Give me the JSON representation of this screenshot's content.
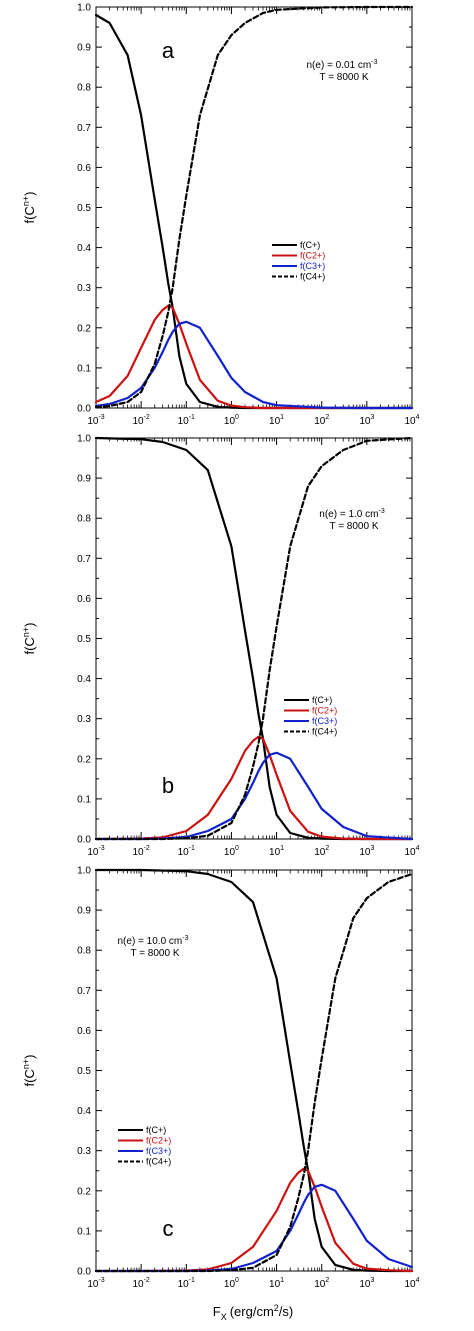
{
  "figure": {
    "x_axis_label": "F",
    "x_axis_label_sub": "X",
    "x_axis_label_units": "(erg/cm",
    "x_axis_label_units_sup": "2",
    "x_axis_label_units_end": "/s)",
    "y_axis_label_base": "f(C",
    "y_axis_label_sup": "n+",
    "y_axis_label_end": ")"
  },
  "chart_data": [
    {
      "type": "line",
      "panel": "a",
      "annotation_line1_base": "n(e) = 0.01 cm",
      "annotation_line1_sup": "-3",
      "annotation_line2": "T = 8000 K",
      "legend_position": "center-right",
      "xscale": "log",
      "xlim": [
        0.001,
        10000
      ],
      "ylim": [
        0,
        1.0
      ],
      "yticks": [
        "0.0",
        "0.1",
        "0.2",
        "0.3",
        "0.4",
        "0.5",
        "0.6",
        "0.7",
        "0.8",
        "0.9",
        "1.0"
      ],
      "xtick_exponents": [
        "-3",
        "-2",
        "-1",
        "0",
        "1",
        "2",
        "3",
        "4"
      ],
      "grid": false,
      "x": [
        0.001,
        0.002,
        0.005,
        0.01,
        0.02,
        0.03,
        0.04,
        0.05,
        0.07,
        0.1,
        0.2,
        0.5,
        1,
        2,
        5,
        10,
        100,
        1000,
        10000
      ],
      "series": [
        {
          "name": "f(C+)",
          "color": "#000000",
          "dash": "solid",
          "values": [
            0.98,
            0.96,
            0.88,
            0.73,
            0.52,
            0.4,
            0.31,
            0.25,
            0.13,
            0.06,
            0.015,
            0.003,
            0.001,
            0,
            0,
            0,
            0,
            0,
            0
          ]
        },
        {
          "name": "f(C2+)",
          "color": "#cc1111",
          "dash": "solid",
          "values": [
            0.015,
            0.03,
            0.08,
            0.15,
            0.22,
            0.245,
            0.255,
            0.25,
            0.21,
            0.16,
            0.07,
            0.018,
            0.006,
            0.002,
            0,
            0,
            0,
            0,
            0
          ]
        },
        {
          "name": "f(C3+)",
          "color": "#1122cc",
          "dash": "solid",
          "values": [
            0.005,
            0.01,
            0.025,
            0.05,
            0.1,
            0.14,
            0.17,
            0.19,
            0.21,
            0.215,
            0.2,
            0.13,
            0.075,
            0.04,
            0.015,
            0.007,
            0.001,
            0,
            0
          ]
        },
        {
          "name": "f(C4+)",
          "color": "#000000",
          "dash": "dashed",
          "values": [
            0.002,
            0.005,
            0.015,
            0.04,
            0.11,
            0.18,
            0.24,
            0.3,
            0.42,
            0.53,
            0.73,
            0.88,
            0.93,
            0.96,
            0.985,
            0.993,
            0.999,
            1.0,
            1.0
          ]
        }
      ]
    },
    {
      "type": "line",
      "panel": "b",
      "annotation_line1_base": "n(e) = 1.0 cm",
      "annotation_line1_sup": "-3",
      "annotation_line2": "T = 8000 K",
      "legend_position": "center-right",
      "xscale": "log",
      "xlim": [
        0.001,
        10000
      ],
      "ylim": [
        0,
        1.0
      ],
      "yticks": [
        "0.0",
        "0.1",
        "0.2",
        "0.3",
        "0.4",
        "0.5",
        "0.6",
        "0.7",
        "0.8",
        "0.9",
        "1.0"
      ],
      "xtick_exponents": [
        "-3",
        "-2",
        "-1",
        "0",
        "1",
        "2",
        "3",
        "4"
      ],
      "grid": false,
      "x": [
        0.001,
        0.01,
        0.03,
        0.1,
        0.3,
        1,
        2,
        3,
        4,
        5,
        7,
        10,
        20,
        50,
        100,
        300,
        1000,
        10000
      ],
      "series": [
        {
          "name": "f(C+)",
          "color": "#000000",
          "dash": "solid",
          "values": [
            1.0,
            0.997,
            0.99,
            0.97,
            0.92,
            0.73,
            0.52,
            0.4,
            0.31,
            0.25,
            0.13,
            0.06,
            0.015,
            0.003,
            0.001,
            0,
            0,
            0
          ]
        },
        {
          "name": "f(C2+)",
          "color": "#cc1111",
          "dash": "solid",
          "values": [
            0,
            0.001,
            0.004,
            0.02,
            0.06,
            0.15,
            0.22,
            0.245,
            0.255,
            0.25,
            0.21,
            0.16,
            0.07,
            0.018,
            0.006,
            0.001,
            0,
            0
          ]
        },
        {
          "name": "f(C3+)",
          "color": "#1122cc",
          "dash": "solid",
          "values": [
            0,
            0,
            0.001,
            0.005,
            0.02,
            0.05,
            0.1,
            0.14,
            0.17,
            0.19,
            0.21,
            0.215,
            0.2,
            0.13,
            0.075,
            0.03,
            0.007,
            0
          ]
        },
        {
          "name": "f(C4+)",
          "color": "#000000",
          "dash": "dashed",
          "values": [
            0,
            0,
            0,
            0.002,
            0.008,
            0.04,
            0.11,
            0.18,
            0.24,
            0.3,
            0.42,
            0.53,
            0.73,
            0.88,
            0.93,
            0.97,
            0.993,
            1.0
          ]
        }
      ]
    },
    {
      "type": "line",
      "panel": "c",
      "annotation_line1_base": "n(e) = 10.0 cm",
      "annotation_line1_sup": "-3",
      "annotation_line2": "T = 8000 K",
      "legend_position": "center-left",
      "xscale": "log",
      "xlim": [
        0.001,
        10000
      ],
      "ylim": [
        0,
        1.0
      ],
      "yticks": [
        "0.0",
        "0.1",
        "0.2",
        "0.3",
        "0.4",
        "0.5",
        "0.6",
        "0.7",
        "0.8",
        "0.9",
        "1.0"
      ],
      "xtick_exponents": [
        "-3",
        "-2",
        "-1",
        "0",
        "1",
        "2",
        "3",
        "4"
      ],
      "grid": false,
      "x": [
        0.001,
        0.01,
        0.1,
        0.3,
        1,
        3,
        10,
        20,
        30,
        40,
        50,
        70,
        100,
        200,
        500,
        1000,
        3000,
        10000
      ],
      "series": [
        {
          "name": "f(C+)",
          "color": "#000000",
          "dash": "solid",
          "values": [
            1.0,
            1.0,
            0.997,
            0.99,
            0.97,
            0.92,
            0.73,
            0.52,
            0.4,
            0.31,
            0.25,
            0.13,
            0.06,
            0.015,
            0.003,
            0.001,
            0,
            0
          ]
        },
        {
          "name": "f(C2+)",
          "color": "#cc1111",
          "dash": "solid",
          "values": [
            0,
            0,
            0.001,
            0.004,
            0.02,
            0.06,
            0.15,
            0.22,
            0.245,
            0.255,
            0.25,
            0.21,
            0.16,
            0.07,
            0.018,
            0.006,
            0.002,
            0
          ]
        },
        {
          "name": "f(C3+)",
          "color": "#1122cc",
          "dash": "solid",
          "values": [
            0,
            0,
            0,
            0.001,
            0.005,
            0.02,
            0.05,
            0.1,
            0.14,
            0.17,
            0.19,
            0.21,
            0.215,
            0.2,
            0.13,
            0.075,
            0.03,
            0.01
          ]
        },
        {
          "name": "f(C4+)",
          "color": "#000000",
          "dash": "dashed",
          "values": [
            0,
            0,
            0,
            0,
            0.002,
            0.008,
            0.04,
            0.11,
            0.18,
            0.24,
            0.3,
            0.42,
            0.53,
            0.73,
            0.88,
            0.93,
            0.97,
            0.99
          ]
        }
      ]
    }
  ]
}
